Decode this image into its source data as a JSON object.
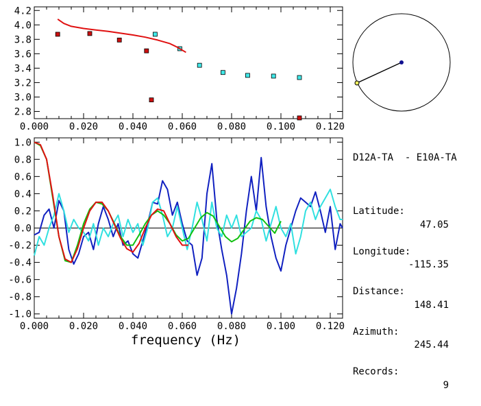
{
  "info_panel": {
    "title": "D12A-TA  - E10A-TA",
    "rows": [
      {
        "label": "Latitude:",
        "value": "47.05"
      },
      {
        "label": "Longitude:",
        "value": "-115.35"
      },
      {
        "label": "Distance:",
        "value": "148.41"
      },
      {
        "label": "Azimuth:",
        "value": "245.44"
      },
      {
        "label": "Records:",
        "value": "9"
      }
    ]
  },
  "colors": {
    "red": "#e01010",
    "blue": "#1020c0",
    "cyan": "#30e0e0",
    "green": "#10c010",
    "marker_red": "#cc1010",
    "marker_cyan": "#40e8e8",
    "dot_blue": "#101090",
    "dot_yellow": "#f0f060"
  },
  "map_inset": {
    "azimuth_deg": 245.44
  },
  "chart_data": [
    {
      "type": "scatter",
      "title": "",
      "xlabel": "",
      "ylabel": "",
      "xlim": [
        0.0,
        0.125
      ],
      "ylim": [
        2.7,
        4.25
      ],
      "x_ticks": [
        "0.000",
        "0.020",
        "0.040",
        "0.060",
        "0.080",
        "0.100",
        "0.120"
      ],
      "y_ticks": [
        "2.8",
        "3.0",
        "3.2",
        "3.4",
        "3.6",
        "3.8",
        "4.0",
        "4.2"
      ],
      "grid": false,
      "series": [
        {
          "color": "red",
          "marker": "square",
          "x": [
            0.0095,
            0.0225,
            0.0345,
            0.0455,
            0.0475,
            0.1075
          ],
          "y": [
            3.87,
            3.88,
            3.79,
            3.64,
            2.96,
            2.71
          ]
        },
        {
          "color": "cyan",
          "marker": "square",
          "x": [
            0.049,
            0.059,
            0.067,
            0.0765,
            0.0865,
            0.097,
            0.1075
          ],
          "y": [
            3.87,
            3.67,
            3.44,
            3.34,
            3.3,
            3.29,
            3.27
          ]
        },
        {
          "color": "red",
          "marker": "line",
          "x": [
            0.0095,
            0.012,
            0.015,
            0.02,
            0.025,
            0.03,
            0.035,
            0.04,
            0.045,
            0.05,
            0.055,
            0.058,
            0.0615
          ],
          "y": [
            4.08,
            4.02,
            3.98,
            3.95,
            3.93,
            3.91,
            3.885,
            3.86,
            3.83,
            3.79,
            3.74,
            3.69,
            3.62
          ]
        }
      ]
    },
    {
      "type": "line",
      "title": "",
      "xlabel": "frequency (Hz)",
      "ylabel": "",
      "xlim": [
        0.0,
        0.125
      ],
      "ylim": [
        -1.05,
        1.05
      ],
      "x_ticks": [
        "0.000",
        "0.020",
        "0.040",
        "0.060",
        "0.080",
        "0.100",
        "0.120"
      ],
      "y_ticks": [
        "-1.0",
        "-0.8",
        "-0.6",
        "-0.4",
        "-0.2",
        "0.0",
        "0.2",
        "0.4",
        "0.6",
        "0.8",
        "1.0"
      ],
      "zero_line": true,
      "grid": false,
      "series": [
        {
          "color": "blue",
          "x": [
            0.0,
            0.002,
            0.004,
            0.006,
            0.008,
            0.01,
            0.012,
            0.014,
            0.016,
            0.018,
            0.02,
            0.022,
            0.024,
            0.026,
            0.028,
            0.03,
            0.032,
            0.034,
            0.036,
            0.038,
            0.04,
            0.042,
            0.044,
            0.046,
            0.048,
            0.05,
            0.052,
            0.054,
            0.056,
            0.058,
            0.06,
            0.062,
            0.064,
            0.066,
            0.068,
            0.07,
            0.072,
            0.074,
            0.076,
            0.078,
            0.08,
            0.082,
            0.084,
            0.086,
            0.088,
            0.09,
            0.092,
            0.094,
            0.096,
            0.098,
            0.1,
            0.102,
            0.104,
            0.106,
            0.108,
            0.11,
            0.112,
            0.114,
            0.116,
            0.118,
            0.12,
            0.122,
            0.124,
            0.125
          ],
          "y": [
            -0.08,
            -0.05,
            0.15,
            0.22,
            0.0,
            0.32,
            0.2,
            -0.25,
            -0.42,
            -0.3,
            -0.1,
            -0.05,
            -0.25,
            0.05,
            0.25,
            0.1,
            -0.1,
            0.05,
            -0.2,
            -0.15,
            -0.3,
            -0.35,
            -0.15,
            0.05,
            0.3,
            0.28,
            0.55,
            0.45,
            0.15,
            0.3,
            0.05,
            -0.15,
            -0.2,
            -0.55,
            -0.35,
            0.4,
            0.75,
            0.1,
            -0.25,
            -0.55,
            -1.0,
            -0.7,
            -0.3,
            0.2,
            0.6,
            0.2,
            0.82,
            0.25,
            -0.1,
            -0.35,
            -0.5,
            -0.2,
            0.0,
            0.2,
            0.35,
            0.3,
            0.25,
            0.42,
            0.2,
            -0.05,
            0.25,
            -0.25,
            0.05,
            0.0
          ]
        },
        {
          "color": "cyan",
          "x": [
            0.0,
            0.002,
            0.004,
            0.006,
            0.008,
            0.01,
            0.012,
            0.014,
            0.016,
            0.018,
            0.02,
            0.022,
            0.024,
            0.026,
            0.028,
            0.03,
            0.032,
            0.034,
            0.036,
            0.038,
            0.04,
            0.042,
            0.044,
            0.046,
            0.048,
            0.05,
            0.052,
            0.054,
            0.056,
            0.058,
            0.06,
            0.062,
            0.064,
            0.066,
            0.068,
            0.07,
            0.072,
            0.074,
            0.076,
            0.078,
            0.08,
            0.082,
            0.084,
            0.086,
            0.088,
            0.09,
            0.092,
            0.094,
            0.096,
            0.098,
            0.1,
            0.102,
            0.104,
            0.106,
            0.108,
            0.11,
            0.112,
            0.114,
            0.116,
            0.118,
            0.12,
            0.122,
            0.124,
            0.125
          ],
          "y": [
            -0.32,
            -0.1,
            -0.2,
            0.0,
            0.15,
            0.4,
            0.2,
            -0.05,
            0.1,
            0.0,
            -0.05,
            -0.15,
            0.05,
            -0.2,
            0.0,
            -0.1,
            0.05,
            0.15,
            -0.1,
            0.1,
            -0.05,
            0.05,
            -0.2,
            0.0,
            0.3,
            0.35,
            0.15,
            -0.1,
            0.0,
            0.25,
            0.0,
            -0.25,
            0.0,
            0.3,
            0.1,
            -0.15,
            0.3,
            0.0,
            -0.1,
            0.15,
            0.0,
            0.15,
            -0.1,
            -0.05,
            0.0,
            0.2,
            0.1,
            -0.15,
            0.05,
            0.25,
            0.0,
            -0.1,
            0.05,
            -0.3,
            -0.1,
            0.2,
            0.3,
            0.1,
            0.25,
            0.35,
            0.45,
            0.25,
            0.1,
            0.1
          ]
        },
        {
          "color": "green",
          "x": [
            0.0,
            0.0025,
            0.005,
            0.0075,
            0.01,
            0.0125,
            0.015,
            0.0175,
            0.02,
            0.0225,
            0.025,
            0.0275,
            0.03,
            0.0325,
            0.035,
            0.0375,
            0.04,
            0.0425,
            0.045,
            0.0475,
            0.05,
            0.0525,
            0.055,
            0.0575,
            0.06,
            0.0625,
            0.065,
            0.0675,
            0.07,
            0.0725,
            0.075,
            0.0775,
            0.08,
            0.0825,
            0.085,
            0.0875,
            0.09,
            0.0925,
            0.095,
            0.0975,
            0.1
          ],
          "y": [
            1.0,
            0.96,
            0.8,
            0.35,
            -0.1,
            -0.38,
            -0.4,
            -0.2,
            0.05,
            0.22,
            0.3,
            0.28,
            0.2,
            0.05,
            -0.1,
            -0.2,
            -0.2,
            -0.08,
            0.05,
            0.15,
            0.2,
            0.15,
            0.05,
            -0.08,
            -0.15,
            -0.12,
            0.0,
            0.12,
            0.18,
            0.14,
            0.02,
            -0.1,
            -0.16,
            -0.12,
            -0.02,
            0.08,
            0.12,
            0.1,
            0.02,
            -0.06,
            0.08
          ]
        },
        {
          "color": "red",
          "x": [
            0.0,
            0.0025,
            0.005,
            0.0075,
            0.01,
            0.0125,
            0.015,
            0.0175,
            0.02,
            0.0225,
            0.025,
            0.0275,
            0.03,
            0.0325,
            0.035,
            0.0375,
            0.04,
            0.0425,
            0.045,
            0.0475,
            0.05,
            0.0525,
            0.055,
            0.0575,
            0.06,
            0.0625
          ],
          "y": [
            1.0,
            0.97,
            0.8,
            0.38,
            -0.1,
            -0.36,
            -0.4,
            -0.24,
            0.0,
            0.2,
            0.3,
            0.3,
            0.2,
            0.04,
            -0.12,
            -0.24,
            -0.28,
            -0.18,
            0.0,
            0.15,
            0.22,
            0.2,
            0.05,
            -0.1,
            -0.2,
            -0.2
          ]
        }
      ]
    }
  ]
}
